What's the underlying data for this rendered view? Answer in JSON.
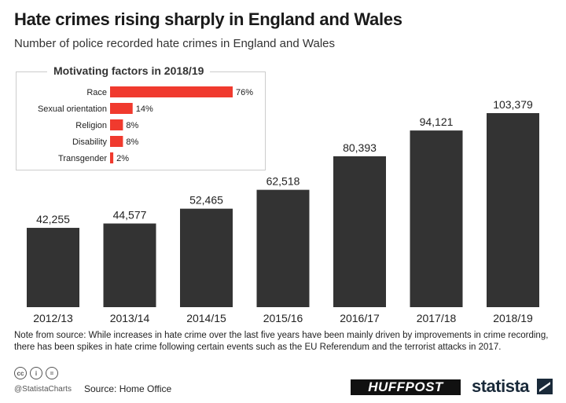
{
  "header": {
    "title": "Hate crimes rising sharply in England and Wales",
    "subtitle": "Number of police recorded hate crimes in England and Wales"
  },
  "chart_data": [
    {
      "type": "bar",
      "categories": [
        "2012/13",
        "2013/14",
        "2014/15",
        "2015/16",
        "2016/17",
        "2017/18",
        "2018/19"
      ],
      "values": [
        42255,
        44577,
        52465,
        62518,
        80393,
        94121,
        103379
      ],
      "value_labels": [
        "42,255",
        "44,577",
        "52,465",
        "62,518",
        "80,393",
        "94,121",
        "103,379"
      ],
      "title": "Hate crimes rising sharply in England and Wales",
      "subtitle": "Number of police recorded hate crimes in England and Wales",
      "ylim": [
        0,
        103379
      ],
      "grid": false,
      "bar_color": "#333333"
    },
    {
      "type": "bar",
      "orientation": "horizontal",
      "title": "Motivating factors in 2018/19",
      "categories": [
        "Race",
        "Sexual orientation",
        "Religion",
        "Disability",
        "Transgender"
      ],
      "values": [
        76,
        14,
        8,
        8,
        2
      ],
      "value_labels": [
        "76%",
        "14%",
        "8%",
        "8%",
        "2%"
      ],
      "xlim": [
        0,
        76
      ],
      "bar_color": "#f03a2e"
    }
  ],
  "note": "Note from source: While increases in hate crime over the last five years have been mainly driven by improvements in crime recording, there has been spikes in hate crime following certain events such as the EU Referendum and the terrorist attacks in 2017.",
  "footer": {
    "handle": "@StatistaCharts",
    "source": "Source: Home Office",
    "huffpost": "HUFFPOST",
    "statista": "statista",
    "cc_icons": [
      "cc-icon",
      "attribution-icon",
      "no-derivatives-icon"
    ]
  }
}
